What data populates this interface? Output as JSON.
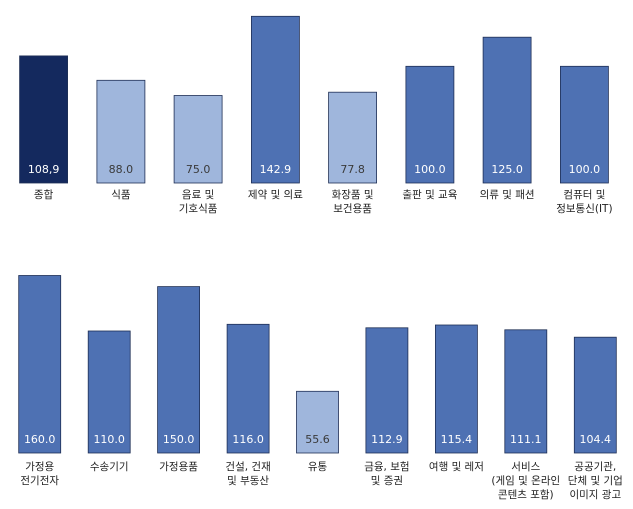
{
  "colors": {
    "total": "#14295e",
    "low": "#9fb6dc",
    "high": "#4e71b3",
    "value_on_dark": "#ffffff",
    "value_on_light": "#3a3a3a",
    "category_text": "#222222",
    "axis": "#b0b0b0"
  },
  "chart_data": [
    {
      "type": "bar",
      "title": "",
      "xlabel": "",
      "ylabel": "",
      "ylim": [
        0,
        150
      ],
      "grid": false,
      "legend": "none",
      "categories": [
        [
          "종합"
        ],
        [
          "식품"
        ],
        [
          "음료 및",
          "기호식품"
        ],
        [
          "제약 및 의료"
        ],
        [
          "화장품 및",
          "보건용품"
        ],
        [
          "출판 및 교육"
        ],
        [
          "의류 및 패션"
        ],
        [
          "컴퓨터 및",
          "정보통신(IT)"
        ]
      ],
      "values": [
        108.9,
        88.0,
        75.0,
        142.9,
        77.8,
        100.0,
        125.0,
        100.0
      ],
      "value_labels": [
        "108,9",
        "88.0",
        "75.0",
        "142.9",
        "77.8",
        "100.0",
        "125.0",
        "100.0"
      ],
      "bar_kind": [
        "total",
        "low",
        "low",
        "high",
        "low",
        "high",
        "high",
        "high"
      ]
    },
    {
      "type": "bar",
      "title": "",
      "xlabel": "",
      "ylabel": "",
      "ylim": [
        0,
        165
      ],
      "grid": false,
      "legend": "none",
      "categories": [
        [
          "가정용",
          "전기전자"
        ],
        [
          "수송기기"
        ],
        [
          "가정용품"
        ],
        [
          "건설, 건재",
          "및 부동산"
        ],
        [
          "유통"
        ],
        [
          "금융, 보험",
          "및 증권"
        ],
        [
          "여행 및 레저"
        ],
        [
          "서비스",
          "(게임 및 온라인",
          "콘텐츠 포함)"
        ],
        [
          "공공기관,",
          "단체 및 기업",
          "이미지 광고"
        ]
      ],
      "values": [
        160.0,
        110.0,
        150.0,
        116.0,
        55.6,
        112.9,
        115.4,
        111.1,
        104.4
      ],
      "value_labels": [
        "160.0",
        "110.0",
        "150.0",
        "116.0",
        "55.6",
        "112.9",
        "115.4",
        "111.1",
        "104.4"
      ],
      "bar_kind": [
        "high",
        "high",
        "high",
        "high",
        "low",
        "high",
        "high",
        "high",
        "high"
      ]
    }
  ]
}
